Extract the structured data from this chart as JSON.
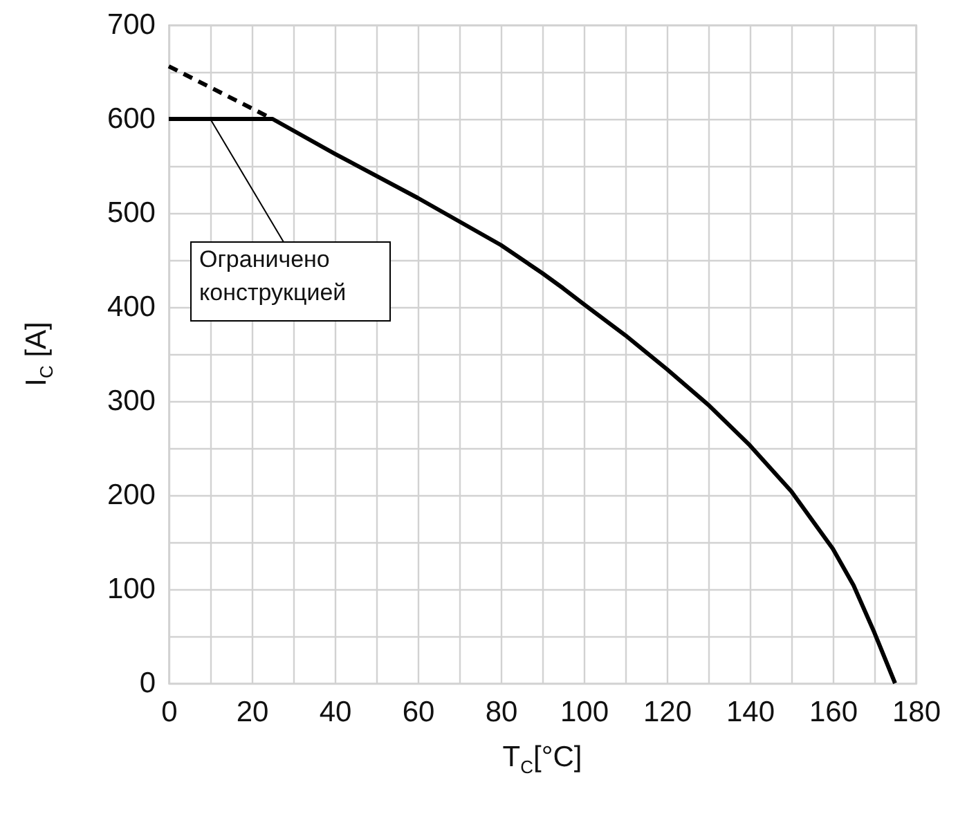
{
  "chart_data": {
    "type": "line",
    "xlabel": "T$_{C}$[°C]",
    "ylabel": "I$_{C}$ [A]",
    "series": [
      {
        "color": "#000000",
        "line_style": "solid",
        "x": [
          0,
          25,
          40,
          60,
          80,
          90,
          95,
          100,
          110,
          120,
          130,
          140,
          150,
          160,
          165,
          170,
          175
        ],
        "values": [
          600,
          600,
          563,
          516,
          466,
          436,
          420,
          403,
          370,
          334,
          296,
          253,
          204,
          143,
          104,
          54,
          0
        ]
      },
      {
        "color": "#000000",
        "line_style": "dashed",
        "x": [
          0,
          25
        ],
        "values": [
          656,
          600
        ]
      }
    ],
    "annotations": [
      {
        "text": "Ограничено\nконструкцией",
        "x": 10,
        "y": 600
      }
    ],
    "xlim": [
      0,
      180
    ],
    "xticks": [
      0,
      {
        "value": 10,
        "label": null
      },
      20,
      {
        "value": 30,
        "label": null
      },
      40,
      {
        "value": 50,
        "label": null
      },
      60,
      {
        "value": 70,
        "label": null
      },
      80,
      {
        "value": 90,
        "label": null
      },
      100,
      {
        "value": 110,
        "label": null
      },
      120,
      {
        "value": 130,
        "label": null
      },
      140,
      {
        "value": 150,
        "label": null
      },
      160,
      {
        "value": 170,
        "label": null
      },
      180
    ],
    "ylim": [
      0,
      700
    ],
    "yticks": [
      0,
      {
        "value": 50,
        "label": null
      },
      100,
      {
        "value": 150,
        "label": null
      },
      200,
      {
        "value": 250,
        "label": null
      },
      300,
      {
        "value": 350,
        "label": null
      },
      400,
      {
        "value": 450,
        "label": null
      },
      500,
      {
        "value": 550,
        "label": null
      },
      600,
      {
        "value": 650,
        "label": null
      },
      700
    ],
    "grid": true,
    "marker": "none"
  }
}
